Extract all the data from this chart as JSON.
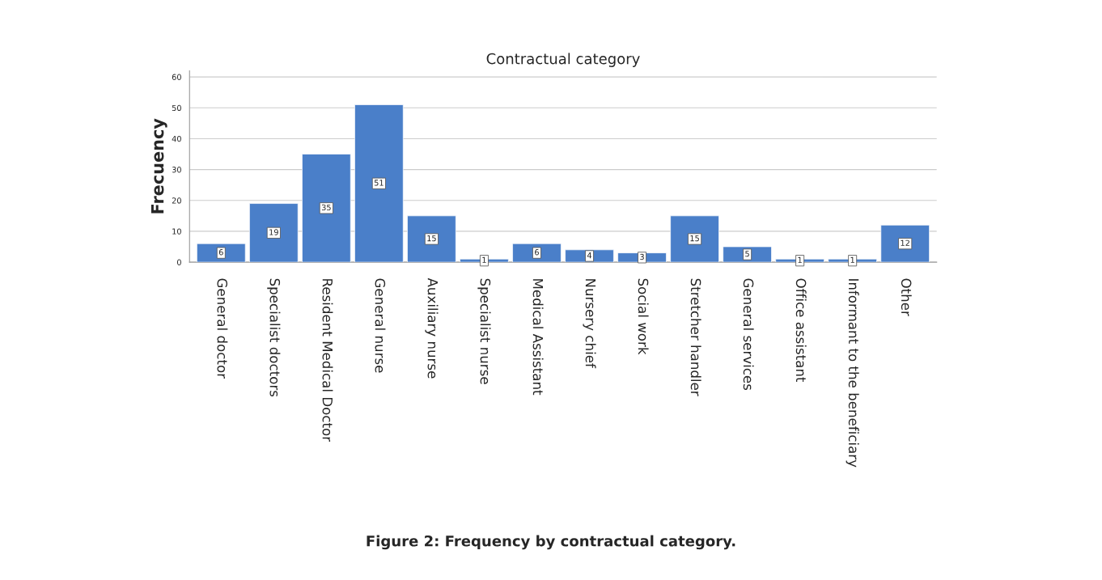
{
  "chart_data": {
    "type": "bar",
    "title": "Contractual category",
    "ylabel": "Frecuency",
    "categories": [
      "General doctor",
      "Specialist doctors",
      "Resident Medical Doctor",
      "General nurse",
      "Auxiliary nurse",
      "Specialist nurse",
      "Medical Assistant",
      "Nursery chief",
      "Social work",
      "Stretcher handler",
      "General services",
      "Office assistant",
      "Informant to the beneficiary",
      "Other"
    ],
    "values": [
      6,
      19,
      35,
      51,
      15,
      1,
      6,
      4,
      3,
      15,
      5,
      1,
      1,
      12
    ],
    "color": "#4a7fc9",
    "ylim": [
      0,
      62
    ],
    "yticks": [
      0,
      10,
      20,
      30,
      40,
      50,
      60
    ],
    "grid": "y",
    "data_labels": true,
    "legend": false,
    "annotations": [
      "Figure 2: Frequency by contractual category."
    ]
  }
}
